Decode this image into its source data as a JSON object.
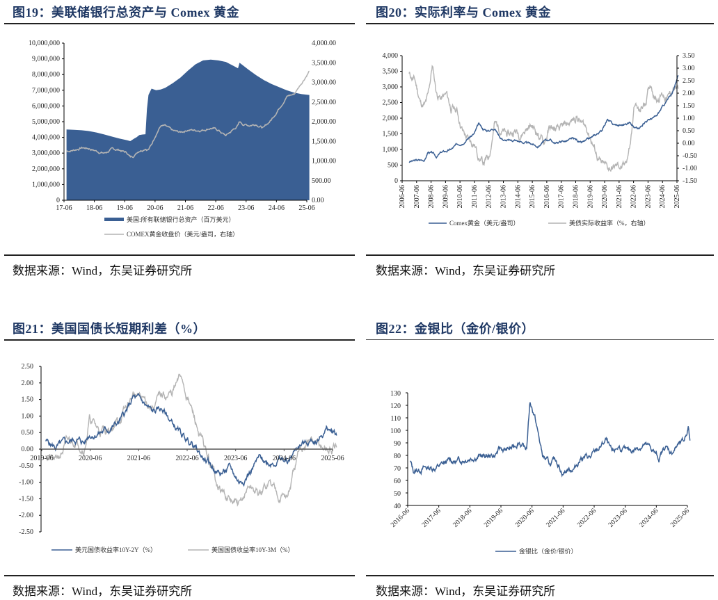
{
  "source_label": "数据来源：Wind，东吴证券研究所",
  "panels": [
    {
      "figure_title": "图19：美联储银行总资产与 Comex 黄金",
      "source": "数据来源：Wind，东吴证券研究所"
    },
    {
      "figure_title": "图20：实际利率与 Comex 黄金",
      "source": "数据来源：Wind，东吴证券研究所"
    },
    {
      "figure_title": "图21：美国国债长短期利差（%）",
      "source": "数据来源：Wind，东吴证券研究所"
    },
    {
      "figure_title": "图22：金银比（金价/银价）",
      "source": "数据来源：Wind，东吴证券研究所"
    }
  ],
  "colors": {
    "blue": "#3a5f93",
    "gray": "#b4b4b4",
    "title": "#1f3864"
  },
  "chart_data": [
    {
      "id": "fig19",
      "type": "area",
      "title": "美联储银行总资产与 Comex 黄金",
      "x_ticks": [
        "17-06",
        "18-06",
        "19-06",
        "20-06",
        "21-06",
        "22-06",
        "23-06",
        "24-06",
        "25-06"
      ],
      "ylim_left": [
        0,
        10000000
      ],
      "y_ticks_left": [
        "0",
        "1,000,000",
        "2,000,000",
        "3,000,000",
        "4,000,000",
        "5,000,000",
        "6,000,000",
        "7,000,000",
        "8,000,000",
        "9,000,000",
        "10,000,000"
      ],
      "ylim_right": [
        0,
        4000
      ],
      "y_ticks_right": [
        "0.00",
        "500.00",
        "1,000.00",
        "1,500.00",
        "2,000.00",
        "2,500.00",
        "3,000.00",
        "3,500.00",
        "4,000.00"
      ],
      "x": [
        2017.5,
        2017.75,
        2018.0,
        2018.25,
        2018.5,
        2018.75,
        2019.0,
        2019.25,
        2019.5,
        2019.6,
        2019.75,
        2019.8,
        2019.9,
        2020.0,
        2020.1,
        2020.15,
        2020.2,
        2020.3,
        2020.45,
        2020.6,
        2020.75,
        2021.0,
        2021.25,
        2021.5,
        2021.75,
        2022.0,
        2022.25,
        2022.5,
        2022.75,
        2023.0,
        2023.15,
        2023.2,
        2023.3,
        2023.5,
        2023.75,
        2024.0,
        2024.25,
        2024.5,
        2024.75,
        2025.0,
        2025.25,
        2025.5
      ],
      "series": [
        {
          "name": "美国:所有联储银行总资产（百万美元）",
          "type": "area",
          "axis": "left",
          "values": [
            4500000,
            4480000,
            4450000,
            4400000,
            4300000,
            4180000,
            4050000,
            3920000,
            3820000,
            3760000,
            3950000,
            4000000,
            4150000,
            4180000,
            4200000,
            5800000,
            6700000,
            7100000,
            7000000,
            7050000,
            7150000,
            7450000,
            7800000,
            8250000,
            8650000,
            8900000,
            8950000,
            8900000,
            8800000,
            8550000,
            8400000,
            8750000,
            8600000,
            8300000,
            7950000,
            7650000,
            7400000,
            7200000,
            7000000,
            6850000,
            6750000,
            6700000
          ]
        },
        {
          "name": "COMEX黄金收盘价（美元/盎司，右轴）",
          "type": "line",
          "axis": "right",
          "values": [
            1250,
            1280,
            1340,
            1320,
            1250,
            1200,
            1290,
            1280,
            1200,
            1100,
            1150,
            1220,
            1280,
            1300,
            1350,
            1320,
            1310,
            1420,
            1700,
            1900,
            1880,
            1750,
            1720,
            1800,
            1780,
            1800,
            1850,
            1780,
            1640,
            1800,
            1900,
            1990,
            1940,
            1910,
            1950,
            1840,
            2050,
            2350,
            2650,
            2700,
            3000,
            3300
          ]
        }
      ]
    },
    {
      "id": "fig20",
      "type": "line",
      "title": "实际利率与 Comex 黄金",
      "x_ticks": [
        "2006-06",
        "2007-06",
        "2008-06",
        "2009-06",
        "2010-06",
        "2011-06",
        "2012-06",
        "2013-06",
        "2014-06",
        "2015-06",
        "2016-06",
        "2017-06",
        "2018-06",
        "2019-06",
        "2020-06",
        "2021-06",
        "2022-06",
        "2023-06",
        "2024-06",
        "2025-06"
      ],
      "ylim_left": [
        0,
        4000
      ],
      "y_ticks_left": [
        "0",
        "500",
        "1,000",
        "1,500",
        "2,000",
        "2,500",
        "3,000",
        "3,500",
        "4,000"
      ],
      "ylim_right": [
        -1.5,
        3.5
      ],
      "y_ticks_right": [
        "-1.50",
        "-1.00",
        "-0.50",
        "0.00",
        "0.50",
        "1.00",
        "1.50",
        "2.00",
        "2.50",
        "3.00",
        "3.50"
      ],
      "x": [
        2006.9,
        2007.3,
        2007.7,
        2008.0,
        2008.2,
        2008.5,
        2008.8,
        2009.1,
        2009.5,
        2009.8,
        2010.2,
        2010.6,
        2011.0,
        2011.4,
        2011.7,
        2012.0,
        2012.4,
        2012.8,
        2013.2,
        2013.5,
        2013.8,
        2014.2,
        2014.6,
        2015.0,
        2015.4,
        2015.8,
        2016.2,
        2016.6,
        2017.0,
        2017.4,
        2017.8,
        2018.2,
        2018.5,
        2018.8,
        2019.2,
        2019.6,
        2019.9,
        2020.2,
        2020.6,
        2021.0,
        2021.4,
        2021.8,
        2022.2,
        2022.5,
        2022.8,
        2023.2,
        2023.6,
        2024.0,
        2024.4,
        2024.8,
        2025.2,
        2025.5
      ],
      "series": [
        {
          "name": "Comex黄金（美元/盎司）",
          "axis": "left",
          "color": "blue",
          "values": [
            610,
            640,
            660,
            680,
            920,
            880,
            760,
            900,
            950,
            1000,
            1150,
            1230,
            1380,
            1500,
            1800,
            1650,
            1600,
            1700,
            1400,
            1300,
            1280,
            1300,
            1250,
            1200,
            1180,
            1100,
            1250,
            1330,
            1200,
            1260,
            1280,
            1330,
            1300,
            1200,
            1290,
            1400,
            1500,
            1600,
            1950,
            1800,
            1770,
            1800,
            1900,
            1700,
            1650,
            1900,
            1980,
            2050,
            2350,
            2600,
            2900,
            3400
          ]
        },
        {
          "name": "美债实际收益率（%，右轴）",
          "axis": "right",
          "color": "gray",
          "values": [
            2.75,
            2.5,
            1.6,
            1.5,
            1.8,
            3.1,
            2.0,
            1.8,
            1.9,
            1.4,
            1.3,
            0.5,
            0.1,
            0.0,
            -0.5,
            -0.8,
            -0.6,
            0.8,
            0.6,
            0.4,
            0.3,
            0.5,
            0.4,
            0.6,
            0.7,
            0.4,
            0.0,
            0.6,
            0.5,
            0.5,
            0.7,
            0.9,
            1.1,
            0.8,
            0.6,
            0.0,
            -0.5,
            -0.9,
            -1.0,
            -1.0,
            -0.9,
            -1.0,
            0.0,
            1.6,
            1.2,
            1.6,
            2.4,
            1.8,
            2.0,
            1.8,
            2.2,
            2.1
          ]
        }
      ]
    },
    {
      "id": "fig21",
      "type": "line",
      "title": "美国国债长短期利差（%）",
      "x_ticks": [
        "2019-06",
        "2020-06",
        "2021-06",
        "2022-06",
        "2023-06",
        "2024-06",
        "2025-06"
      ],
      "ylim": [
        -2.5,
        2.5
      ],
      "y_ticks": [
        "-2.50",
        "-2.00",
        "-1.50",
        "-1.00",
        "-0.50",
        "0.00",
        "0.50",
        "1.00",
        "1.50",
        "2.00",
        "2.50"
      ],
      "x": [
        2019.5,
        2019.7,
        2019.9,
        2020.1,
        2020.3,
        2020.4,
        2020.6,
        2020.8,
        2021.0,
        2021.2,
        2021.3,
        2021.5,
        2021.7,
        2021.9,
        2022.1,
        2022.3,
        2022.5,
        2022.7,
        2022.9,
        2023.1,
        2023.3,
        2023.5,
        2023.7,
        2023.9,
        2024.1,
        2024.3,
        2024.5,
        2024.7,
        2024.9,
        2025.1,
        2025.3,
        2025.5
      ],
      "series": [
        {
          "name": "美元国债收益率10Y-2Y（%）",
          "color": "blue",
          "values": [
            0.25,
            0.05,
            0.15,
            0.3,
            0.2,
            0.45,
            0.5,
            0.6,
            0.8,
            1.2,
            1.55,
            1.4,
            1.1,
            1.2,
            0.8,
            0.4,
            0.2,
            -0.2,
            -0.5,
            -0.75,
            -0.6,
            -1.0,
            -0.7,
            -0.3,
            -0.4,
            -0.3,
            -0.4,
            0.1,
            0.2,
            0.3,
            0.6,
            0.45
          ]
        },
        {
          "name": "美国国债收益率10Y-3M（%）",
          "color": "gray",
          "values": [
            -0.1,
            -0.4,
            0.1,
            0.3,
            0.1,
            0.9,
            0.55,
            0.6,
            0.85,
            1.3,
            1.65,
            1.5,
            1.3,
            1.6,
            1.65,
            2.2,
            1.2,
            0.3,
            -0.5,
            -1.2,
            -1.6,
            -1.75,
            -1.1,
            -1.4,
            -1.0,
            -1.3,
            -1.4,
            -0.3,
            0.3,
            0.1,
            0.0,
            -0.05
          ]
        }
      ]
    },
    {
      "id": "fig22",
      "type": "line",
      "title": "金银比（金价/银价）",
      "x_ticks": [
        "2016-06",
        "2017-06",
        "2018-06",
        "2019-06",
        "2020-06",
        "2021-06",
        "2022-06",
        "2023-06",
        "2024-06",
        "2025-06"
      ],
      "ylim": [
        40,
        130
      ],
      "y_ticks": [
        "40",
        "50",
        "60",
        "70",
        "80",
        "90",
        "100",
        "110",
        "120",
        "130"
      ],
      "x": [
        2016.5,
        2016.6,
        2016.9,
        2017.2,
        2017.5,
        2017.8,
        2018.0,
        2018.3,
        2018.6,
        2018.9,
        2019.2,
        2019.4,
        2019.6,
        2019.8,
        2020.0,
        2020.2,
        2020.25,
        2020.35,
        2020.5,
        2020.6,
        2020.75,
        2021.0,
        2021.2,
        2021.4,
        2021.6,
        2021.8,
        2022.0,
        2022.3,
        2022.6,
        2022.8,
        2023.0,
        2023.2,
        2023.5,
        2023.8,
        2024.0,
        2024.3,
        2024.5,
        2024.7,
        2024.9,
        2025.1,
        2025.3,
        2025.45,
        2025.5
      ],
      "series": [
        {
          "name": "金银比（金价/银价）",
          "color": "blue",
          "values": [
            75,
            67,
            70,
            70,
            72,
            76,
            75,
            78,
            80,
            79,
            80,
            85,
            84,
            86,
            92,
            84,
            87,
            123,
            112,
            99,
            80,
            72,
            76,
            66,
            69,
            70,
            79,
            78,
            86,
            92,
            80,
            87,
            82,
            86,
            89,
            84,
            77,
            87,
            82,
            88,
            90,
            103,
            92
          ]
        }
      ]
    }
  ]
}
